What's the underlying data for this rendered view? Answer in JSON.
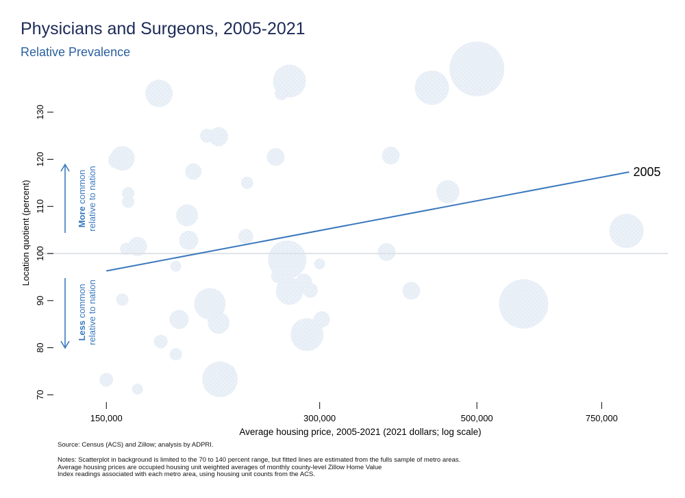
{
  "header": {
    "title": "Physicians and Surgeons, 2005-2021",
    "subtitle": "Relative Prevalence"
  },
  "chart_data": {
    "type": "scatter",
    "title": "Physicians and Surgeons, 2005-2021",
    "subtitle": "Relative Prevalence",
    "xlabel": "Average housing price, 2005-2021 (2021 dollars; log scale)",
    "ylabel": "Location quotient (percent)",
    "xscale": "log",
    "xlim": [
      120000,
      930000
    ],
    "ylim": [
      67,
      140
    ],
    "x_ticks": [
      150000,
      300000,
      500000,
      750000
    ],
    "x_tick_labels": [
      "150,000",
      "300,000",
      "500,000",
      "750,000"
    ],
    "y_ticks": [
      70,
      80,
      90,
      100,
      110,
      120,
      130
    ],
    "y_tick_labels": [
      "70",
      "80",
      "90",
      "100",
      "110",
      "120",
      "130"
    ],
    "reference_line_y": 100,
    "fitted_line": {
      "label": "2005",
      "points": [
        {
          "x": 150000,
          "y": 96.3
        },
        {
          "x": 820000,
          "y": 117.3
        }
      ]
    },
    "annotations": {
      "more": {
        "bold": "More",
        "rest": " common",
        "line2": "relative to nation"
      },
      "less": {
        "bold": "Less",
        "rest": " common",
        "line2": "relative to nation"
      }
    },
    "bubbles": [
      {
        "x": 150000,
        "y": 73.2,
        "size": 1.0
      },
      {
        "x": 166000,
        "y": 71.2,
        "size": 0.8
      },
      {
        "x": 158000,
        "y": 90.2,
        "size": 0.9
      },
      {
        "x": 179000,
        "y": 81.3,
        "size": 1.0
      },
      {
        "x": 188000,
        "y": 78.6,
        "size": 0.9
      },
      {
        "x": 188000,
        "y": 97.3,
        "size": 0.8
      },
      {
        "x": 190000,
        "y": 86.0,
        "size": 1.4
      },
      {
        "x": 217000,
        "y": 73.3,
        "size": 2.6
      },
      {
        "x": 222000,
        "y": 74.6,
        "size": 1.3
      },
      {
        "x": 216000,
        "y": 85.3,
        "size": 1.6
      },
      {
        "x": 210000,
        "y": 89.3,
        "size": 2.3
      },
      {
        "x": 160000,
        "y": 101.0,
        "size": 0.9
      },
      {
        "x": 166000,
        "y": 101.5,
        "size": 1.4
      },
      {
        "x": 196000,
        "y": 102.8,
        "size": 1.4
      },
      {
        "x": 195000,
        "y": 108.1,
        "size": 1.6
      },
      {
        "x": 161000,
        "y": 111.0,
        "size": 0.9
      },
      {
        "x": 161000,
        "y": 112.8,
        "size": 0.9
      },
      {
        "x": 158000,
        "y": 120.2,
        "size": 1.8
      },
      {
        "x": 155000,
        "y": 119.8,
        "size": 1.2
      },
      {
        "x": 199000,
        "y": 117.4,
        "size": 1.2
      },
      {
        "x": 208000,
        "y": 125.0,
        "size": 1.0
      },
      {
        "x": 216000,
        "y": 124.8,
        "size": 1.4
      },
      {
        "x": 237000,
        "y": 115.0,
        "size": 0.9
      },
      {
        "x": 236000,
        "y": 103.6,
        "size": 1.1
      },
      {
        "x": 178000,
        "y": 134.0,
        "size": 2.0
      },
      {
        "x": 260000,
        "y": 120.5,
        "size": 1.3
      },
      {
        "x": 272000,
        "y": 136.6,
        "size": 2.4
      },
      {
        "x": 265000,
        "y": 134.0,
        "size": 1.0
      },
      {
        "x": 270000,
        "y": 98.7,
        "size": 2.8
      },
      {
        "x": 262000,
        "y": 95.2,
        "size": 1.0
      },
      {
        "x": 285000,
        "y": 94.0,
        "size": 1.2
      },
      {
        "x": 272000,
        "y": 92.0,
        "size": 2.0
      },
      {
        "x": 291000,
        "y": 92.2,
        "size": 1.1
      },
      {
        "x": 300000,
        "y": 97.8,
        "size": 0.8
      },
      {
        "x": 302000,
        "y": 86.0,
        "size": 1.2
      },
      {
        "x": 288000,
        "y": 82.8,
        "size": 2.4
      },
      {
        "x": 285000,
        "y": 81.8,
        "size": 1.6
      },
      {
        "x": 373000,
        "y": 100.3,
        "size": 1.3
      },
      {
        "x": 378000,
        "y": 120.8,
        "size": 1.3
      },
      {
        "x": 404000,
        "y": 92.1,
        "size": 1.3
      },
      {
        "x": 432000,
        "y": 135.2,
        "size": 2.5
      },
      {
        "x": 455000,
        "y": 113.1,
        "size": 1.7
      },
      {
        "x": 500000,
        "y": 139.2,
        "size": 4.0
      },
      {
        "x": 582000,
        "y": 89.3,
        "size": 3.6
      },
      {
        "x": 813000,
        "y": 104.8,
        "size": 2.5
      }
    ]
  },
  "footer": {
    "source": "Source: Census (ACS) and Zillow; analysis by ADPRI.",
    "notes": [
      "Notes: Scatterplot in background is limited to the 70 to 140 percent range, but fitted lines are estimated from the fulls sample of metro areas.",
      "Average housing prices are occupied housing unit weighted averages of monthly county-level Zillow Home Value",
      "Index readings associated with each metro area, using housing unit counts from the ACS."
    ]
  }
}
